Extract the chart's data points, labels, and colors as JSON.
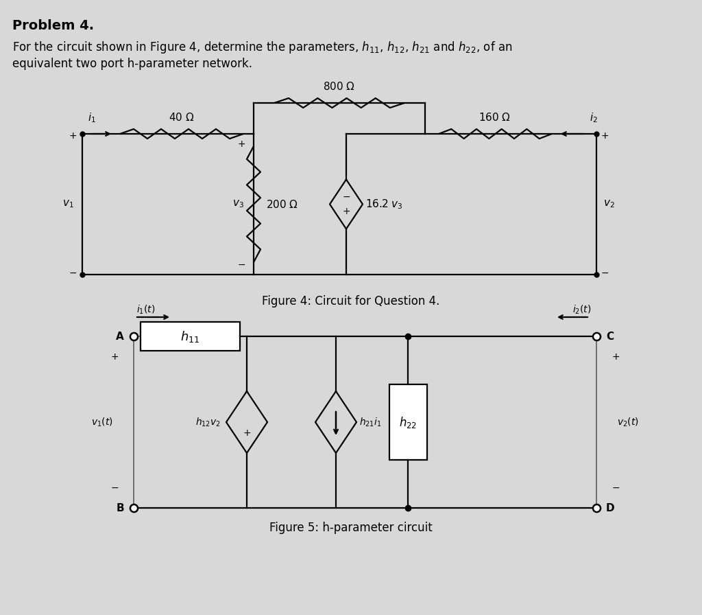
{
  "bg_color": "#d8d8d8",
  "title_text": "Problem 4.",
  "line1": "For the circuit shown in Figure 4, determine the parameters, $h_{11}$, $h_{12}$, $h_{21}$ and $h_{22}$, of an",
  "line2": "equivalent two port h-parameter network.",
  "fig4_caption": "Figure 4: Circuit for Question 4.",
  "fig5_caption": "Figure 5: h-parameter circuit",
  "lw": 1.6
}
